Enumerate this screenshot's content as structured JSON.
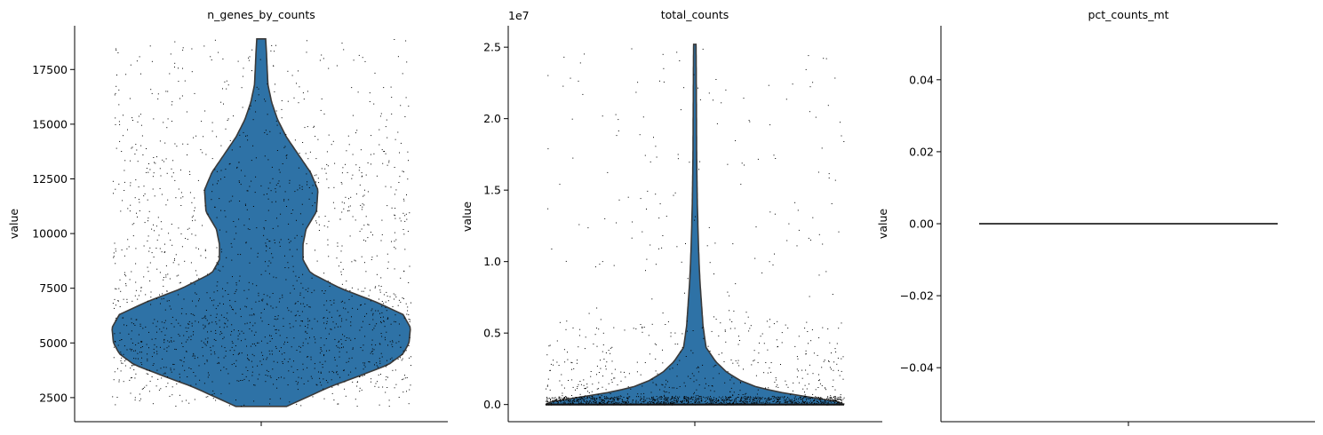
{
  "chart_data": [
    {
      "type": "violin",
      "title": "n_genes_by_counts",
      "xlabel": "",
      "ylabel": "value",
      "ylim": [
        1400,
        19500
      ],
      "yticks": [
        2500,
        5000,
        7500,
        10000,
        12500,
        15000,
        17500
      ],
      "ytick_labels": [
        "2500",
        "5000",
        "7500",
        "10000",
        "12500",
        "15000",
        "17500"
      ],
      "y_offset_label": "",
      "violin": {
        "color": "#2e72a6",
        "min": 2100,
        "max": 18900,
        "profile": [
          [
            2100,
            0.17
          ],
          [
            2500,
            0.3
          ],
          [
            3000,
            0.46
          ],
          [
            3500,
            0.66
          ],
          [
            4000,
            0.85
          ],
          [
            4500,
            0.95
          ],
          [
            5000,
            0.99
          ],
          [
            5700,
            1.0
          ],
          [
            6300,
            0.95
          ],
          [
            6900,
            0.76
          ],
          [
            7500,
            0.53
          ],
          [
            8200,
            0.33
          ],
          [
            8800,
            0.28
          ],
          [
            9500,
            0.28
          ],
          [
            10200,
            0.3
          ],
          [
            11000,
            0.37
          ],
          [
            12000,
            0.38
          ],
          [
            12800,
            0.33
          ],
          [
            13600,
            0.25
          ],
          [
            14400,
            0.17
          ],
          [
            15200,
            0.11
          ],
          [
            16000,
            0.07
          ],
          [
            16800,
            0.045
          ],
          [
            17500,
            0.04
          ],
          [
            18300,
            0.035
          ],
          [
            18900,
            0.03
          ]
        ]
      },
      "points": {
        "count": 1800,
        "color": "#000000",
        "shape": "scattered"
      }
    },
    {
      "type": "violin",
      "title": "total_counts",
      "xlabel": "",
      "ylabel": "value",
      "ylim": [
        -1200000,
        26500000
      ],
      "yticks": [
        0,
        5000000,
        10000000,
        15000000,
        20000000,
        25000000
      ],
      "ytick_labels": [
        "0.0",
        "0.5",
        "1.0",
        "1.5",
        "2.0",
        "2.5"
      ],
      "y_offset_label": "1e7",
      "violin": {
        "color": "#2e72a6",
        "min": 0,
        "max": 25200000,
        "profile": [
          [
            0,
            1.0
          ],
          [
            200000,
            0.96
          ],
          [
            500000,
            0.78
          ],
          [
            800000,
            0.6
          ],
          [
            1200000,
            0.42
          ],
          [
            1700000,
            0.3
          ],
          [
            2300000,
            0.21
          ],
          [
            3000000,
            0.14
          ],
          [
            4000000,
            0.075
          ],
          [
            5500000,
            0.055
          ],
          [
            7000000,
            0.045
          ],
          [
            8500000,
            0.035
          ],
          [
            10000000,
            0.028
          ],
          [
            12000000,
            0.022
          ],
          [
            14000000,
            0.017
          ],
          [
            16000000,
            0.014
          ],
          [
            18000000,
            0.012
          ],
          [
            20000000,
            0.011
          ],
          [
            22000000,
            0.01
          ],
          [
            24000000,
            0.009
          ],
          [
            25200000,
            0.008
          ]
        ]
      },
      "points": {
        "count": 1700,
        "color": "#000000",
        "shape": "concentrated-low"
      }
    },
    {
      "type": "violin",
      "title": "pct_counts_mt",
      "xlabel": "",
      "ylabel": "value",
      "ylim": [
        -0.055,
        0.055
      ],
      "yticks": [
        -0.04,
        -0.02,
        0.0,
        0.02,
        0.04
      ],
      "ytick_labels": [
        "−0.04",
        "−0.02",
        "0.00",
        "0.02",
        "0.04"
      ],
      "y_offset_label": "",
      "constant_value": 0.0,
      "line_color": "#000000"
    }
  ]
}
